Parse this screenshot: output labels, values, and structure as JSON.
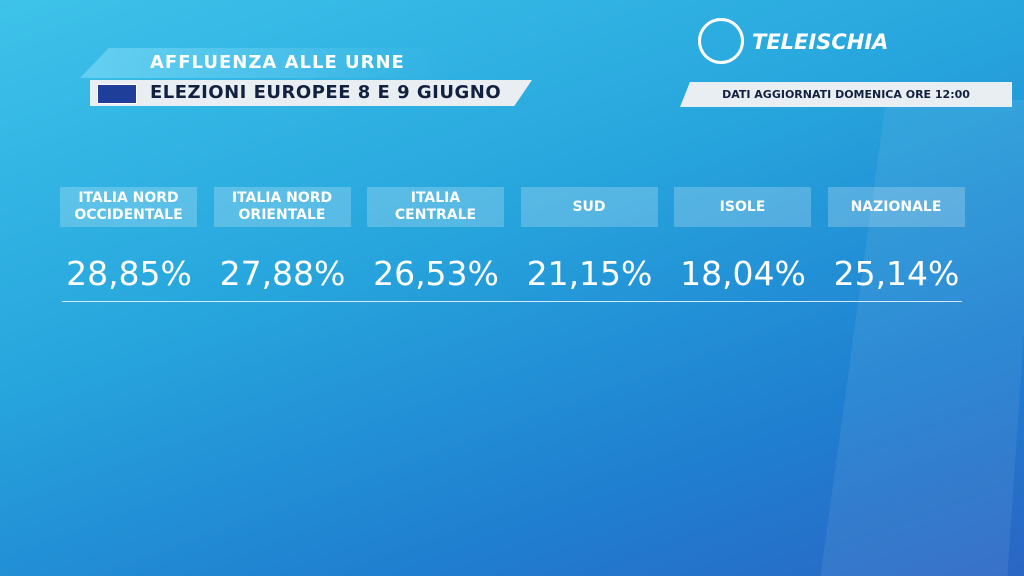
{
  "header": {
    "title": "AFFLUENZA ALLE URNE",
    "subtitle": "ELEZIONI EUROPEE 8 E 9 GIUGNO"
  },
  "logo": {
    "text": "TELEISCHIA"
  },
  "update_note": "DATI AGGIORNATI DOMENICA ORE 12:00",
  "regions": [
    {
      "label": "ITALIA NORD OCCIDENTALE",
      "value": "28,85%"
    },
    {
      "label": "ITALIA NORD ORIENTALE",
      "value": "27,88%"
    },
    {
      "label": "ITALIA CENTRALE",
      "value": "26,53%"
    },
    {
      "label": "SUD",
      "value": "21,15%"
    },
    {
      "label": "ISOLE",
      "value": "18,04%"
    },
    {
      "label": "NAZIONALE",
      "value": "25,14%"
    }
  ]
}
